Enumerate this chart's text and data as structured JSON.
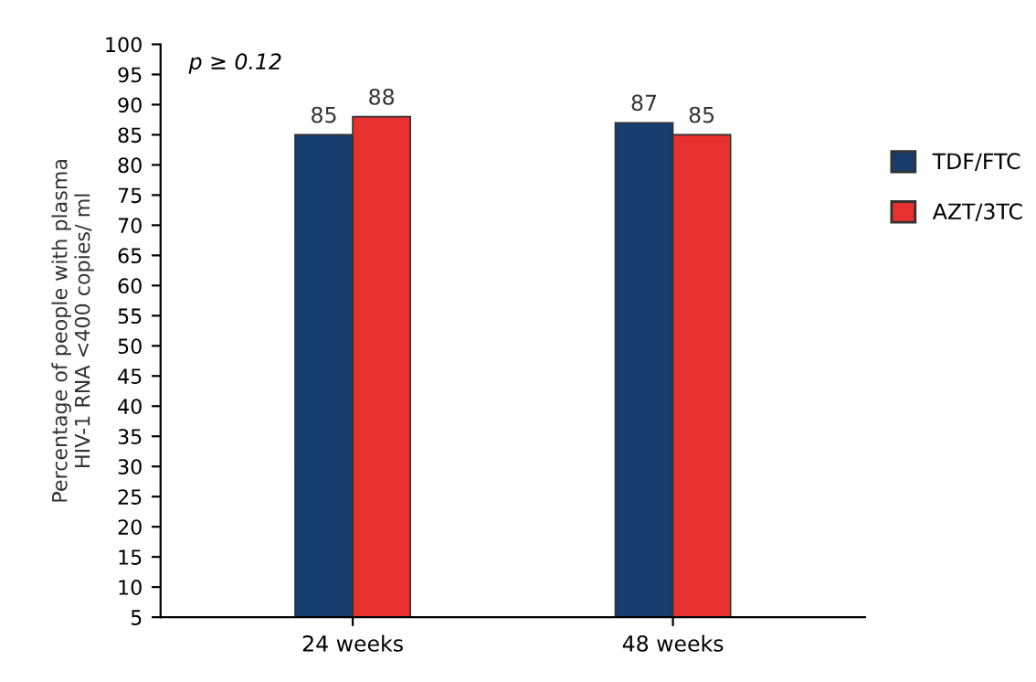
{
  "chart_data": {
    "type": "bar",
    "categories": [
      "24 weeks",
      "48 weeks"
    ],
    "series": [
      {
        "name": "TDF/FTC",
        "color": "#173c6e",
        "values": [
          85,
          87
        ]
      },
      {
        "name": "AZT/3TC",
        "color": "#e8302e",
        "values": [
          88,
          85
        ]
      }
    ],
    "ylabel": "Percentage of people with plasma\nHIV-1 RNA <400 copies/ ml",
    "ylim": [
      5,
      100
    ],
    "yticks": [
      5,
      10,
      15,
      20,
      25,
      30,
      35,
      40,
      45,
      50,
      55,
      60,
      65,
      70,
      75,
      80,
      85,
      90,
      95,
      100
    ],
    "annotations": [
      "p ≥ 0.12"
    ],
    "data_labels": true,
    "legend": "right",
    "grid": false
  }
}
